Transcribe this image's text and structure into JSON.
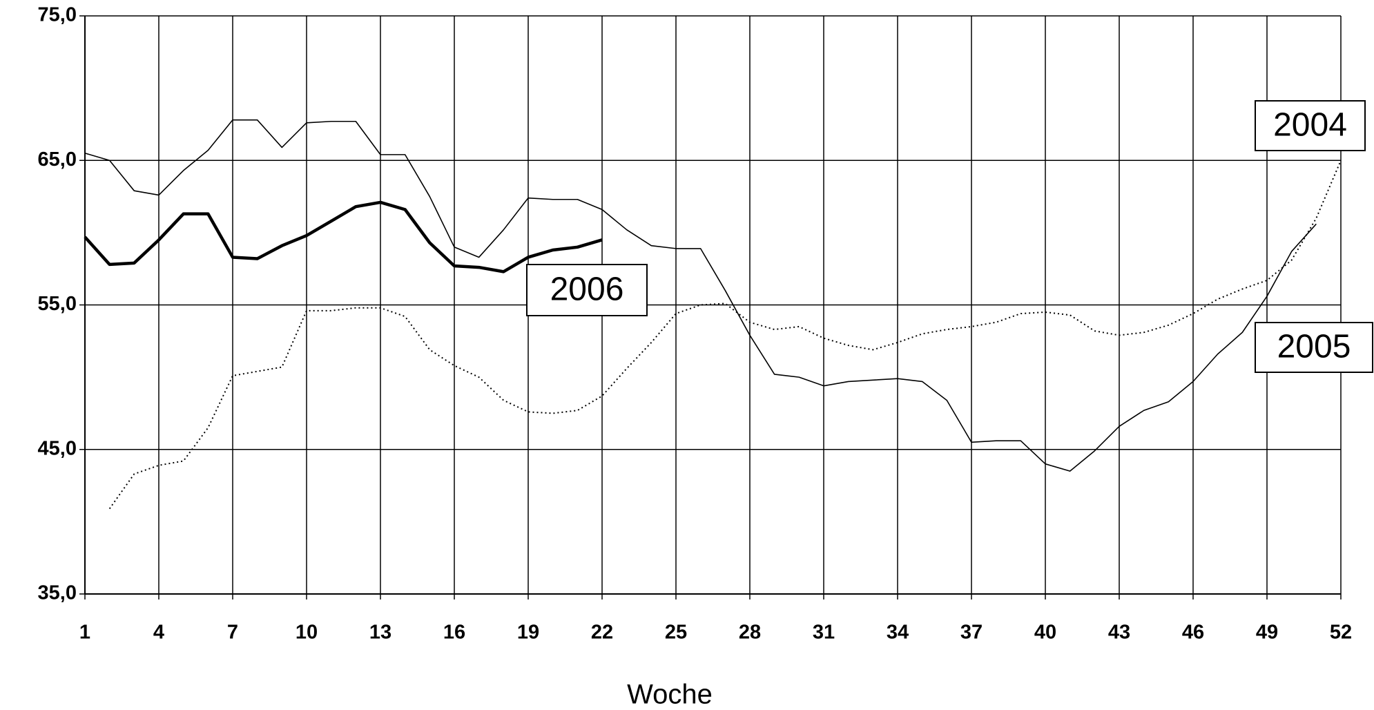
{
  "chart_data": {
    "type": "line",
    "x_label": "Woche",
    "x": [
      1,
      2,
      3,
      4,
      5,
      6,
      7,
      8,
      9,
      10,
      11,
      12,
      13,
      14,
      15,
      16,
      17,
      18,
      19,
      20,
      21,
      22,
      23,
      24,
      25,
      26,
      27,
      28,
      29,
      30,
      31,
      32,
      33,
      34,
      35,
      36,
      37,
      38,
      39,
      40,
      41,
      42,
      43,
      44,
      45,
      46,
      47,
      48,
      49,
      50,
      51,
      52
    ],
    "xlim": [
      1,
      52
    ],
    "xticks": [
      1,
      4,
      7,
      10,
      13,
      16,
      19,
      22,
      25,
      28,
      31,
      34,
      37,
      40,
      43,
      46,
      49,
      52
    ],
    "ylim": [
      35,
      75
    ],
    "yticks": [
      {
        "value": 35,
        "label": "35,0"
      },
      {
        "value": 45,
        "label": "45,0"
      },
      {
        "value": 55,
        "label": "55,0"
      },
      {
        "value": 65,
        "label": "65,0"
      },
      {
        "value": 75,
        "label": "75,0"
      }
    ],
    "grid": true,
    "series": [
      {
        "name": "2004",
        "color": "#000000",
        "line_style": "dotted",
        "values": [
          null,
          40.9,
          43.3,
          43.9,
          44.2,
          46.5,
          50.1,
          50.4,
          50.7,
          54.6,
          54.6,
          54.8,
          54.8,
          54.2,
          51.9,
          50.8,
          50.0,
          48.4,
          47.6,
          47.5,
          47.7,
          48.7,
          50.6,
          52.4,
          54.4,
          55.0,
          55.1,
          53.8,
          53.3,
          53.5,
          52.7,
          52.2,
          51.9,
          52.4,
          53.0,
          53.3,
          53.5,
          53.8,
          54.4,
          54.5,
          54.3,
          53.2,
          52.9,
          53.1,
          53.6,
          54.4,
          55.4,
          56.1,
          56.7,
          58.1,
          61.0,
          65.0
        ]
      },
      {
        "name": "2005",
        "color": "#000000",
        "line_style": "thin",
        "values": [
          65.5,
          65.0,
          62.9,
          62.6,
          64.3,
          65.7,
          67.8,
          67.8,
          65.9,
          67.6,
          67.7,
          67.7,
          65.4,
          65.4,
          62.5,
          59.0,
          58.3,
          60.2,
          62.4,
          62.3,
          62.3,
          61.6,
          60.2,
          59.1,
          58.9,
          58.9,
          56.0,
          52.9,
          50.2,
          50.0,
          49.4,
          49.7,
          49.8,
          49.9,
          49.7,
          48.4,
          45.5,
          45.6,
          45.6,
          44.0,
          43.5,
          44.9,
          46.6,
          47.7,
          48.3,
          49.7,
          51.6,
          53.1,
          55.6,
          58.7,
          60.6,
          null
        ]
      },
      {
        "name": "2006",
        "color": "#000000",
        "line_style": "thick",
        "values": [
          59.7,
          57.8,
          57.9,
          59.5,
          61.3,
          61.3,
          58.3,
          58.2,
          59.1,
          59.8,
          60.8,
          61.8,
          62.1,
          61.6,
          59.3,
          57.7,
          57.6,
          57.3,
          58.3,
          58.8,
          59.0,
          59.5,
          null,
          null,
          null,
          null,
          null,
          null,
          null,
          null,
          null,
          null,
          null,
          null,
          null,
          null,
          null,
          null,
          null,
          null,
          null,
          null,
          null,
          null,
          null,
          null,
          null,
          null,
          null,
          null,
          null,
          null
        ]
      }
    ]
  }
}
